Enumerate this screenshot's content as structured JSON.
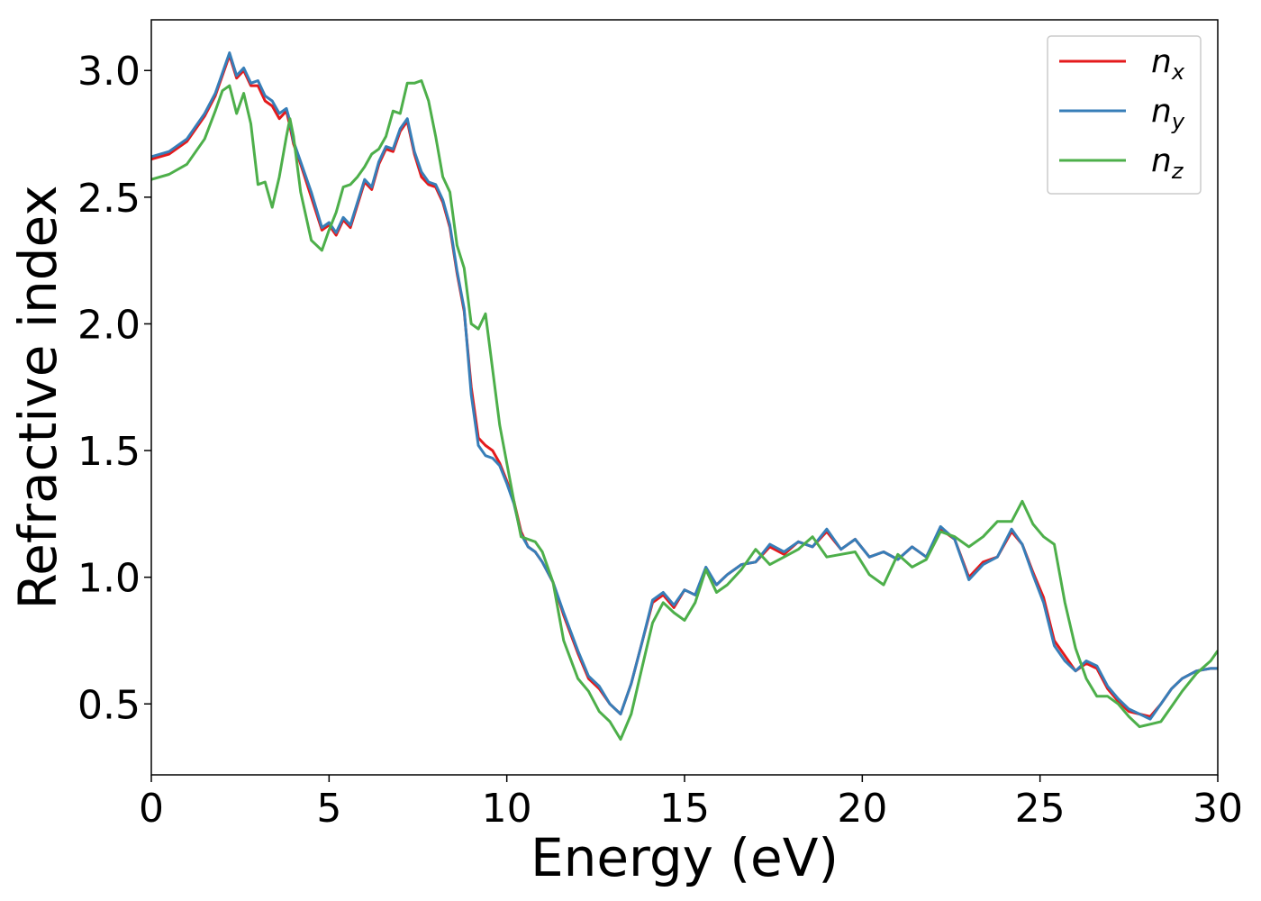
{
  "chart_data": {
    "type": "line",
    "title": "",
    "xlabel": "Energy (eV)",
    "ylabel": "Refractive index",
    "xlim": [
      0,
      30
    ],
    "ylim": [
      0.22,
      3.2
    ],
    "xticks": [
      0,
      5,
      10,
      15,
      20,
      25,
      30
    ],
    "xtick_labels": [
      "0",
      "5",
      "10",
      "15",
      "20",
      "25",
      "30"
    ],
    "yticks": [
      0.5,
      1.0,
      1.5,
      2.0,
      2.5,
      3.0
    ],
    "ytick_labels": [
      "0.5",
      "1.0",
      "1.5",
      "2.0",
      "2.5",
      "3.0"
    ],
    "grid": false,
    "legend_position": "top-right",
    "series": [
      {
        "name": "n_x",
        "label_base": "n",
        "label_sub": "x",
        "color": "#e41a1c",
        "x": [
          0,
          0.5,
          1.0,
          1.5,
          1.8,
          2.0,
          2.2,
          2.4,
          2.6,
          2.8,
          3.0,
          3.2,
          3.4,
          3.6,
          3.8,
          3.9,
          4.0,
          4.2,
          4.5,
          4.8,
          5.0,
          5.2,
          5.4,
          5.6,
          5.8,
          6.0,
          6.2,
          6.4,
          6.6,
          6.8,
          7.0,
          7.2,
          7.4,
          7.6,
          7.8,
          8.0,
          8.2,
          8.4,
          8.6,
          8.8,
          9.0,
          9.2,
          9.4,
          9.6,
          9.8,
          10.0,
          10.2,
          10.4,
          10.6,
          10.8,
          11.0,
          11.3,
          11.6,
          12.0,
          12.3,
          12.6,
          12.9,
          13.2,
          13.5,
          13.8,
          14.1,
          14.4,
          14.7,
          15.0,
          15.3,
          15.6,
          15.9,
          16.2,
          16.6,
          17.0,
          17.4,
          17.8,
          18.2,
          18.6,
          19.0,
          19.4,
          19.8,
          20.2,
          20.6,
          21.0,
          21.4,
          21.8,
          22.2,
          22.6,
          23.0,
          23.4,
          23.8,
          24.2,
          24.5,
          24.8,
          25.1,
          25.4,
          25.7,
          26.0,
          26.3,
          26.6,
          26.9,
          27.2,
          27.5,
          27.8,
          28.1,
          28.4,
          28.7,
          29.0,
          29.4,
          29.8,
          30.0
        ],
        "y": [
          2.65,
          2.67,
          2.72,
          2.82,
          2.9,
          2.98,
          3.06,
          2.97,
          3.0,
          2.94,
          2.94,
          2.88,
          2.86,
          2.81,
          2.84,
          2.78,
          2.71,
          2.63,
          2.5,
          2.37,
          2.39,
          2.35,
          2.41,
          2.38,
          2.47,
          2.56,
          2.53,
          2.63,
          2.69,
          2.68,
          2.76,
          2.8,
          2.67,
          2.58,
          2.55,
          2.54,
          2.48,
          2.38,
          2.2,
          2.05,
          1.75,
          1.55,
          1.52,
          1.5,
          1.45,
          1.38,
          1.3,
          1.18,
          1.12,
          1.1,
          1.06,
          0.98,
          0.85,
          0.7,
          0.6,
          0.56,
          0.5,
          0.46,
          0.58,
          0.74,
          0.9,
          0.93,
          0.88,
          0.95,
          0.93,
          1.03,
          0.97,
          1.01,
          1.05,
          1.06,
          1.12,
          1.09,
          1.14,
          1.12,
          1.18,
          1.11,
          1.15,
          1.08,
          1.1,
          1.07,
          1.12,
          1.08,
          1.19,
          1.15,
          1.0,
          1.06,
          1.08,
          1.18,
          1.13,
          1.02,
          0.92,
          0.75,
          0.69,
          0.63,
          0.66,
          0.64,
          0.56,
          0.51,
          0.47,
          0.46,
          0.45,
          0.5,
          0.56,
          0.6,
          0.63,
          0.64,
          0.64
        ]
      },
      {
        "name": "n_y",
        "label_base": "n",
        "label_sub": "y",
        "color": "#377eb8",
        "x": [
          0,
          0.5,
          1.0,
          1.5,
          1.8,
          2.0,
          2.2,
          2.4,
          2.6,
          2.8,
          3.0,
          3.2,
          3.4,
          3.6,
          3.8,
          3.9,
          4.0,
          4.2,
          4.5,
          4.8,
          5.0,
          5.2,
          5.4,
          5.6,
          5.8,
          6.0,
          6.2,
          6.4,
          6.6,
          6.8,
          7.0,
          7.2,
          7.4,
          7.6,
          7.8,
          8.0,
          8.2,
          8.4,
          8.6,
          8.8,
          9.0,
          9.2,
          9.4,
          9.6,
          9.8,
          10.0,
          10.2,
          10.4,
          10.6,
          10.8,
          11.0,
          11.3,
          11.6,
          12.0,
          12.3,
          12.6,
          12.9,
          13.2,
          13.5,
          13.8,
          14.1,
          14.4,
          14.7,
          15.0,
          15.3,
          15.6,
          15.9,
          16.2,
          16.6,
          17.0,
          17.4,
          17.8,
          18.2,
          18.6,
          19.0,
          19.4,
          19.8,
          20.2,
          20.6,
          21.0,
          21.4,
          21.8,
          22.2,
          22.6,
          23.0,
          23.4,
          23.8,
          24.2,
          24.5,
          24.8,
          25.1,
          25.4,
          25.7,
          26.0,
          26.3,
          26.6,
          26.9,
          27.2,
          27.5,
          27.8,
          28.1,
          28.4,
          28.7,
          29.0,
          29.4,
          29.8,
          30.0
        ],
        "y": [
          2.66,
          2.68,
          2.73,
          2.83,
          2.91,
          2.99,
          3.07,
          2.98,
          3.01,
          2.95,
          2.96,
          2.9,
          2.88,
          2.83,
          2.85,
          2.8,
          2.72,
          2.64,
          2.52,
          2.38,
          2.4,
          2.36,
          2.42,
          2.39,
          2.48,
          2.57,
          2.54,
          2.64,
          2.7,
          2.69,
          2.77,
          2.81,
          2.68,
          2.6,
          2.56,
          2.55,
          2.49,
          2.39,
          2.21,
          2.06,
          1.72,
          1.52,
          1.48,
          1.47,
          1.44,
          1.37,
          1.29,
          1.17,
          1.12,
          1.1,
          1.06,
          0.98,
          0.86,
          0.71,
          0.61,
          0.57,
          0.5,
          0.46,
          0.58,
          0.74,
          0.91,
          0.94,
          0.89,
          0.95,
          0.93,
          1.04,
          0.97,
          1.01,
          1.05,
          1.06,
          1.13,
          1.1,
          1.14,
          1.12,
          1.19,
          1.11,
          1.15,
          1.08,
          1.1,
          1.07,
          1.12,
          1.08,
          1.2,
          1.15,
          0.99,
          1.05,
          1.08,
          1.19,
          1.13,
          1.01,
          0.9,
          0.73,
          0.67,
          0.63,
          0.67,
          0.65,
          0.57,
          0.52,
          0.48,
          0.46,
          0.44,
          0.5,
          0.56,
          0.6,
          0.63,
          0.64,
          0.64
        ]
      },
      {
        "name": "n_z",
        "label_base": "n",
        "label_sub": "z",
        "color": "#4daf4a",
        "x": [
          0,
          0.5,
          1.0,
          1.5,
          1.8,
          2.0,
          2.2,
          2.4,
          2.6,
          2.8,
          3.0,
          3.2,
          3.4,
          3.6,
          3.8,
          3.9,
          4.0,
          4.2,
          4.5,
          4.8,
          5.0,
          5.2,
          5.4,
          5.6,
          5.8,
          6.0,
          6.2,
          6.4,
          6.6,
          6.8,
          7.0,
          7.2,
          7.4,
          7.6,
          7.8,
          8.0,
          8.2,
          8.4,
          8.6,
          8.8,
          9.0,
          9.2,
          9.4,
          9.6,
          9.8,
          10.0,
          10.2,
          10.4,
          10.6,
          10.8,
          11.0,
          11.3,
          11.6,
          12.0,
          12.3,
          12.6,
          12.9,
          13.2,
          13.5,
          13.8,
          14.1,
          14.4,
          14.7,
          15.0,
          15.3,
          15.6,
          15.9,
          16.2,
          16.6,
          17.0,
          17.4,
          17.8,
          18.2,
          18.6,
          19.0,
          19.4,
          19.8,
          20.2,
          20.6,
          21.0,
          21.4,
          21.8,
          22.2,
          22.6,
          23.0,
          23.4,
          23.8,
          24.2,
          24.5,
          24.8,
          25.1,
          25.4,
          25.7,
          26.0,
          26.3,
          26.6,
          26.9,
          27.2,
          27.5,
          27.8,
          28.1,
          28.4,
          28.7,
          29.0,
          29.4,
          29.8,
          30.0
        ],
        "y": [
          2.57,
          2.59,
          2.63,
          2.73,
          2.84,
          2.92,
          2.94,
          2.83,
          2.91,
          2.79,
          2.55,
          2.56,
          2.46,
          2.58,
          2.74,
          2.81,
          2.74,
          2.52,
          2.33,
          2.29,
          2.37,
          2.44,
          2.54,
          2.55,
          2.58,
          2.62,
          2.67,
          2.69,
          2.74,
          2.84,
          2.83,
          2.95,
          2.95,
          2.96,
          2.88,
          2.74,
          2.58,
          2.52,
          2.31,
          2.22,
          2.0,
          1.98,
          2.04,
          1.82,
          1.6,
          1.45,
          1.3,
          1.16,
          1.15,
          1.14,
          1.1,
          0.98,
          0.75,
          0.6,
          0.55,
          0.47,
          0.43,
          0.36,
          0.46,
          0.64,
          0.82,
          0.9,
          0.86,
          0.83,
          0.9,
          1.03,
          0.94,
          0.97,
          1.03,
          1.11,
          1.05,
          1.08,
          1.11,
          1.16,
          1.08,
          1.09,
          1.1,
          1.01,
          0.97,
          1.09,
          1.04,
          1.07,
          1.18,
          1.16,
          1.12,
          1.16,
          1.22,
          1.22,
          1.3,
          1.21,
          1.16,
          1.13,
          0.9,
          0.72,
          0.6,
          0.53,
          0.53,
          0.5,
          0.45,
          0.41,
          0.42,
          0.43,
          0.49,
          0.55,
          0.62,
          0.67,
          0.71
        ]
      }
    ]
  }
}
